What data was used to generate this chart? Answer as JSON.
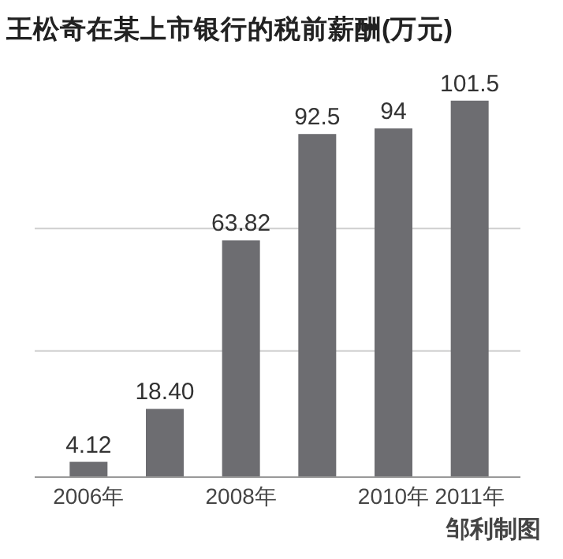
{
  "chart_data": {
    "type": "bar",
    "title": "王松奇在某上市银行的税前薪酬(万元)",
    "categories": [
      "2006年",
      null,
      "2008年",
      null,
      "2010年",
      "2011年"
    ],
    "values": [
      4.12,
      18.4,
      63.82,
      92.5,
      94,
      101.5
    ],
    "value_labels": [
      "4.12",
      "18.40",
      "63.82",
      "92.5",
      "94",
      "101.5"
    ],
    "color": "#6d6d71",
    "ref_lines": [
      {
        "axis": "y",
        "value": 34,
        "color": "#cfcfcf"
      },
      {
        "axis": "y",
        "value": 67,
        "color": "#cfcfcf"
      }
    ],
    "tick_labels": "x",
    "annotations": [
      "邹利制图"
    ]
  }
}
